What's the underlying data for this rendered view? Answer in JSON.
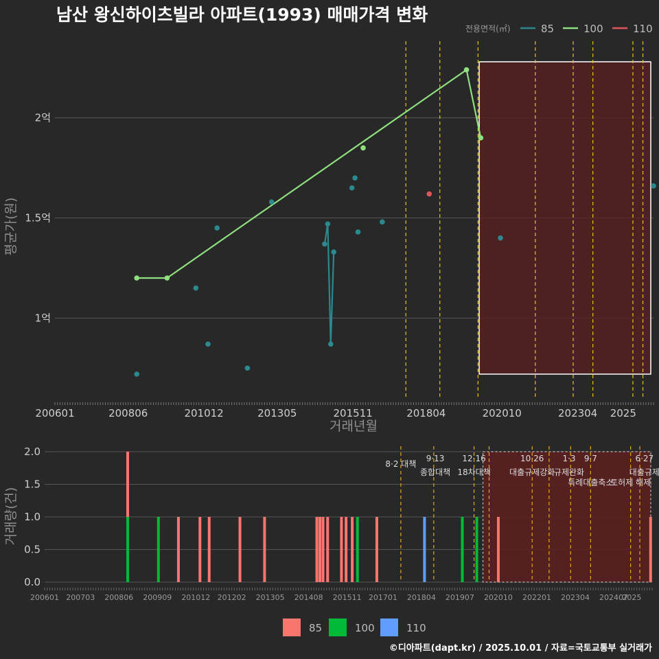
{
  "title": "남산 왕신하이츠빌라 아파트(1993) 매매가격 변화",
  "footer": "©디아파트(dapt.kr) / 2025.10.01 / 자료=국토교통부 실거래가",
  "colors": {
    "85": "#2a8a8e",
    "100": "#8fe07e",
    "110": "#e0565a",
    "bar85": "#f8766d",
    "bar100": "#00ba38",
    "bar110": "#619cff",
    "policy": "#e6c619",
    "highlight": "#5a1f1f",
    "background": "#282828"
  },
  "chart_data": [
    {
      "type": "line",
      "title": "남산 왕신하이츠빌라 아파트(1993) 매매가격 변화",
      "xlabel": "거래년월",
      "ylabel": "평균가(원)",
      "xlim": [
        2006.0,
        2025.75
      ],
      "ylim": [
        0.6,
        2.4
      ],
      "x_ticks": [
        "200601",
        "200806",
        "201012",
        "201305",
        "201511",
        "201804",
        "202010",
        "202304",
        "2025"
      ],
      "y_ticks": [
        {
          "v": 1.0,
          "label": "1억"
        },
        {
          "v": 1.5,
          "label": "1.5억"
        },
        {
          "v": 2.0,
          "label": "2억"
        }
      ],
      "legend_title": "전용면적(㎡)",
      "legend": [
        "85",
        "100",
        "110"
      ],
      "series": [
        {
          "name": "100",
          "line": true,
          "points": [
            [
              2008.7,
              1.2
            ],
            [
              2009.7,
              1.2
            ],
            [
              2019.58,
              2.24
            ],
            [
              2020.05,
              1.9
            ]
          ]
        },
        {
          "name": "100",
          "line": false,
          "points": [
            [
              2016.17,
              1.85
            ]
          ]
        },
        {
          "name": "85",
          "line": false,
          "points": [
            [
              2008.7,
              0.72
            ],
            [
              2010.65,
              1.15
            ],
            [
              2011.35,
              1.45
            ],
            [
              2011.05,
              0.87
            ],
            [
              2012.35,
              0.75
            ],
            [
              2013.15,
              1.58
            ],
            [
              2015.8,
              1.65
            ],
            [
              2015.9,
              1.7
            ],
            [
              2016.0,
              1.43
            ],
            [
              2016.8,
              1.48
            ],
            [
              2020.7,
              1.4
            ],
            [
              2025.75,
              1.66
            ]
          ]
        },
        {
          "name": "85",
          "line": true,
          "points": [
            [
              2014.9,
              1.37
            ],
            [
              2015.0,
              1.47
            ],
            [
              2015.1,
              0.87
            ],
            [
              2015.2,
              1.33
            ]
          ]
        },
        {
          "name": "110",
          "line": false,
          "points": [
            [
              2018.35,
              1.62
            ]
          ]
        }
      ],
      "policy_lines": [
        2017.58,
        2018.7,
        2019.96,
        2021.85,
        2023.1,
        2023.75,
        2025.07,
        2025.4
      ],
      "highlight_range": [
        2020.0,
        2025.75
      ]
    },
    {
      "type": "bar",
      "xlabel": "",
      "ylabel": "거래량(건)",
      "xlim": [
        2006.0,
        2025.75
      ],
      "ylim": [
        0,
        2.0
      ],
      "x_ticks": [
        "200601",
        "200703",
        "200806",
        "200909",
        "201012",
        "201202",
        "201305",
        "201408",
        "201511",
        "201701",
        "201804",
        "201907",
        "202010",
        "202201",
        "202304",
        "202407",
        "2025"
      ],
      "y_ticks": [
        "0.0",
        "0.5",
        "1.0",
        "1.5",
        "2.0"
      ],
      "legend": [
        "85",
        "100",
        "110"
      ],
      "bars": [
        {
          "x": 2008.7,
          "stack": [
            {
              "s": "100",
              "v": 1
            },
            {
              "s": "85",
              "v": 1
            }
          ]
        },
        {
          "x": 2009.7,
          "stack": [
            {
              "s": "100",
              "v": 1
            }
          ]
        },
        {
          "x": 2010.35,
          "stack": [
            {
              "s": "85",
              "v": 1
            }
          ]
        },
        {
          "x": 2011.05,
          "stack": [
            {
              "s": "85",
              "v": 1
            }
          ]
        },
        {
          "x": 2011.35,
          "stack": [
            {
              "s": "85",
              "v": 1
            }
          ]
        },
        {
          "x": 2012.35,
          "stack": [
            {
              "s": "85",
              "v": 1
            }
          ]
        },
        {
          "x": 2013.15,
          "stack": [
            {
              "s": "85",
              "v": 1
            }
          ]
        },
        {
          "x": 2014.85,
          "stack": [
            {
              "s": "85",
              "v": 1
            }
          ]
        },
        {
          "x": 2014.95,
          "stack": [
            {
              "s": "85",
              "v": 1
            }
          ]
        },
        {
          "x": 2015.05,
          "stack": [
            {
              "s": "85",
              "v": 1
            }
          ]
        },
        {
          "x": 2015.2,
          "stack": [
            {
              "s": "85",
              "v": 1
            }
          ]
        },
        {
          "x": 2015.65,
          "stack": [
            {
              "s": "85",
              "v": 1
            }
          ]
        },
        {
          "x": 2015.8,
          "stack": [
            {
              "s": "85",
              "v": 1
            }
          ]
        },
        {
          "x": 2016.0,
          "stack": [
            {
              "s": "85",
              "v": 1
            }
          ]
        },
        {
          "x": 2016.17,
          "stack": [
            {
              "s": "100",
              "v": 1
            }
          ]
        },
        {
          "x": 2016.8,
          "stack": [
            {
              "s": "85",
              "v": 1
            }
          ]
        },
        {
          "x": 2018.35,
          "stack": [
            {
              "s": "110",
              "v": 1
            }
          ]
        },
        {
          "x": 2019.58,
          "stack": [
            {
              "s": "100",
              "v": 1
            }
          ]
        },
        {
          "x": 2020.05,
          "stack": [
            {
              "s": "100",
              "v": 1
            }
          ]
        },
        {
          "x": 2020.75,
          "stack": [
            {
              "s": "85",
              "v": 1
            }
          ]
        },
        {
          "x": 2025.7,
          "stack": [
            {
              "s": "85",
              "v": 1
            }
          ]
        }
      ],
      "policy_lines": [
        2017.58,
        2018.65,
        2019.96,
        2020.45,
        2021.85,
        2022.4,
        2023.1,
        2023.75,
        2025.05,
        2025.35
      ],
      "highlight_range": [
        2020.25,
        2025.75
      ],
      "annotations": [
        {
          "date": "8·2 대책",
          "label": "",
          "x": 2017.58
        },
        {
          "date": "9·13",
          "label": "종합대책",
          "x": 2018.7
        },
        {
          "date": "12·16",
          "label": "18차대책",
          "x": 2019.96
        },
        {
          "date": "10·26",
          "label": "대출규제강화",
          "x": 2021.85
        },
        {
          "date": "1·3",
          "label": "규제완화",
          "x": 2023.05
        },
        {
          "date": "9·7",
          "label": "특례대출축소",
          "x": 2023.75
        },
        {
          "date": "",
          "label": "토허제 해제",
          "x": 2025.05
        },
        {
          "date": "6·27",
          "label": "대출규제",
          "x": 2025.5
        }
      ]
    }
  ]
}
